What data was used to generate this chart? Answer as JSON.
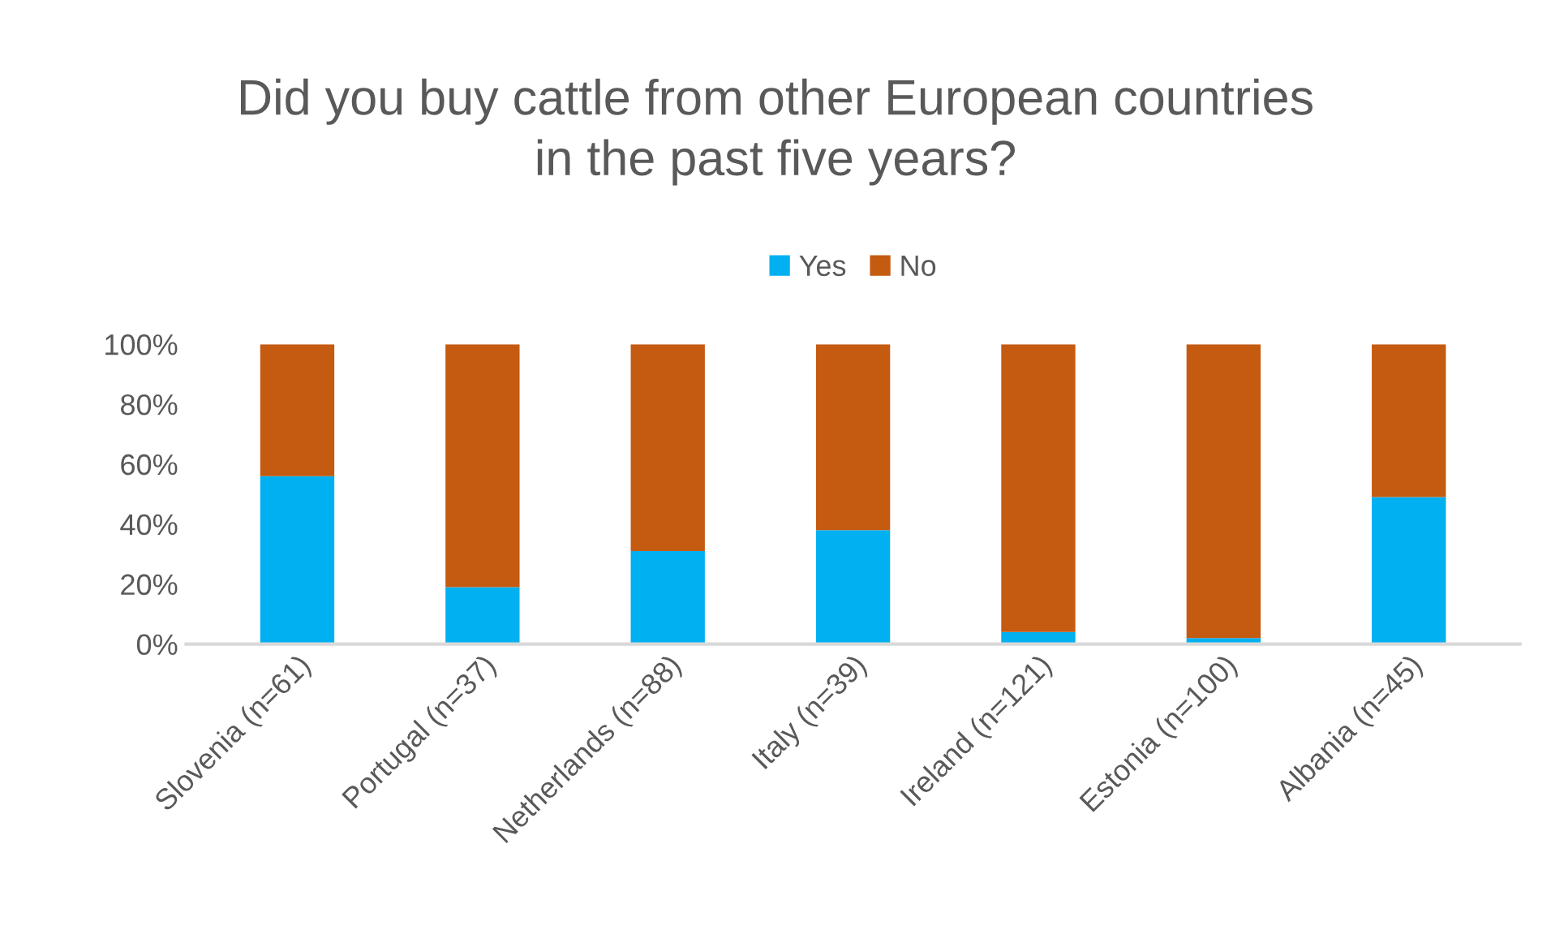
{
  "chart_data": {
    "type": "bar",
    "title": "Did you buy cattle from other European countries\nin the past five years?",
    "categories": [
      "Slovenia (n=61)",
      "Portugal (n=37)",
      "Netherlands (n=88)",
      "Italy (n=39)",
      "Ireland (n=121)",
      "Estonia (n=100)",
      "Albania (n=45)"
    ],
    "series": [
      {
        "name": "Yes",
        "color": "#00b0f0",
        "values": [
          56,
          19,
          31,
          38,
          4,
          2,
          49
        ]
      },
      {
        "name": "No",
        "color": "#c55a11",
        "values": [
          44,
          81,
          69,
          62,
          96,
          98,
          51
        ]
      }
    ],
    "stacked": true,
    "ylim": [
      0,
      100
    ],
    "yticks": [
      {
        "value": 0,
        "label": "0%"
      },
      {
        "value": 20,
        "label": "20%"
      },
      {
        "value": 40,
        "label": "40%"
      },
      {
        "value": 60,
        "label": "60%"
      },
      {
        "value": 80,
        "label": "80%"
      },
      {
        "value": 100,
        "label": "100%"
      }
    ],
    "grid": false,
    "legend": "top"
  }
}
